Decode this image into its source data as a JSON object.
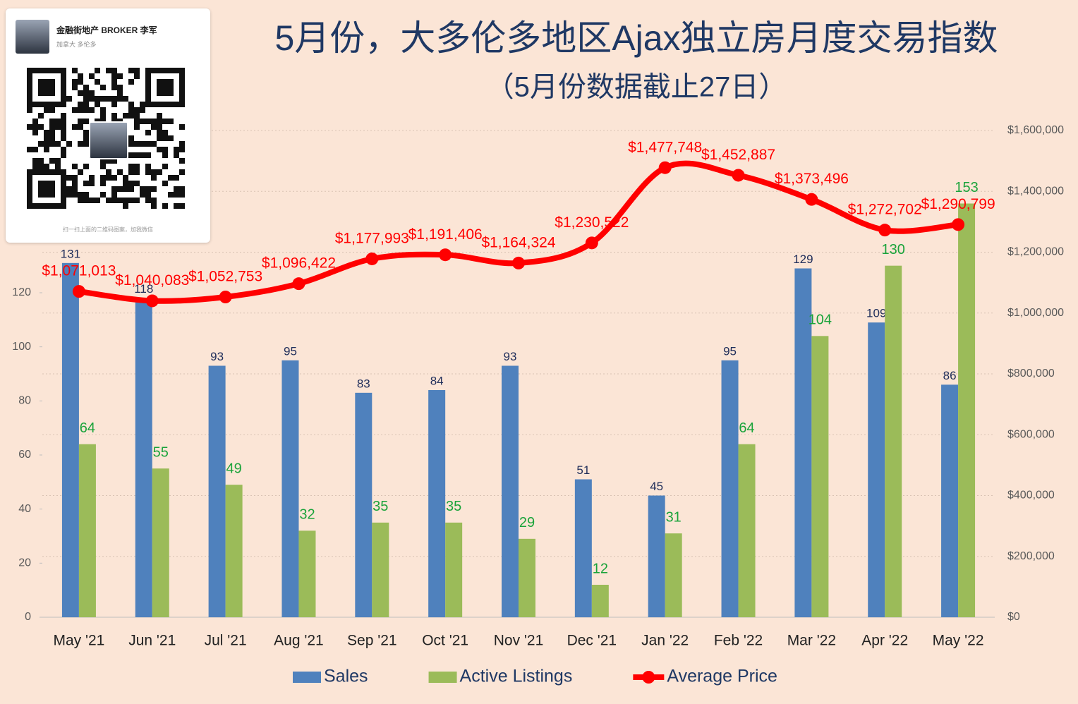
{
  "chart_data": {
    "type": "combo",
    "title": "5月份，大多伦多地区Ajax独立房月度交易指数",
    "subtitle": "（5月份数据截止27日）",
    "categories": [
      "May '21",
      "Jun '21",
      "Jul '21",
      "Aug '21",
      "Sep '21",
      "Oct '21",
      "Nov '21",
      "Dec '21",
      "Jan '22",
      "Feb '22",
      "Mar '22",
      "Apr '22",
      "May '22"
    ],
    "series": [
      {
        "name": "Sales",
        "type": "bar",
        "color": "#4f81bd",
        "label_color": "#1f2d5a",
        "values": [
          131,
          118,
          93,
          95,
          83,
          84,
          93,
          51,
          45,
          95,
          129,
          109,
          86
        ]
      },
      {
        "name": "Active Listings",
        "type": "bar",
        "color": "#9bbb59",
        "label_color": "#1aa33a",
        "values": [
          64,
          55,
          49,
          32,
          35,
          35,
          29,
          12,
          31,
          64,
          104,
          130,
          153
        ]
      },
      {
        "name": "Average Price",
        "type": "line",
        "axis": "y2",
        "color": "#ff0000",
        "values": [
          1071013,
          1040083,
          1052753,
          1096422,
          1177993,
          1191406,
          1164324,
          1230522,
          1477748,
          1452887,
          1373496,
          1272702,
          1290799
        ],
        "value_labels": [
          "$1,071,013",
          "$1,040,083",
          "$1,052,753",
          "$1,096,422",
          "$1,177,993",
          "$1,191,406",
          "$1,164,324",
          "$1,230,522",
          "$1,477,748",
          "$1,452,887",
          "$1,373,496",
          "$1,272,702",
          "$1,290,799"
        ]
      }
    ],
    "ylim": [
      0,
      180
    ],
    "yticks": [
      0,
      20,
      40,
      60,
      80,
      100,
      120
    ],
    "y2lim": [
      0,
      1600000
    ],
    "y2ticks": [
      {
        "value": 0,
        "label": "$0"
      },
      {
        "value": 200000,
        "label": "$200,000"
      },
      {
        "value": 400000,
        "label": "$400,000"
      },
      {
        "value": 600000,
        "label": "$600,000"
      },
      {
        "value": 800000,
        "label": "$800,000"
      },
      {
        "value": 1000000,
        "label": "$1,000,000"
      },
      {
        "value": 1200000,
        "label": "$1,200,000"
      },
      {
        "value": 1400000,
        "label": "$1,400,000"
      },
      {
        "value": 1600000,
        "label": "$1,600,000"
      }
    ],
    "grid": true,
    "legend": "bottom"
  },
  "contact_card": {
    "name": "金融街地产 BROKER 李军",
    "location": "加拿大 多伦多",
    "caption": "扫一扫上面的二维码图案，加我微信"
  }
}
